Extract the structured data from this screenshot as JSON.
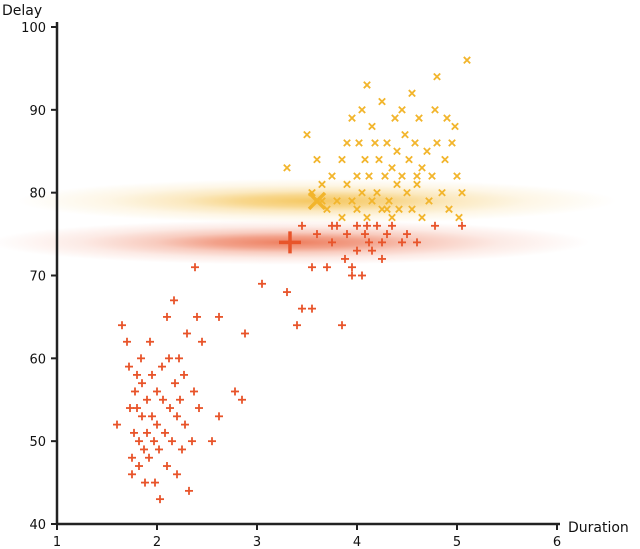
{
  "chart_data": {
    "type": "scatter",
    "xlabel": "Duration",
    "ylabel": "Delay",
    "xlim": [
      1,
      6
    ],
    "ylim": [
      40,
      100
    ],
    "xticks": [
      "1",
      "2",
      "3",
      "4",
      "5",
      "6"
    ],
    "yticks": [
      "40",
      "50",
      "60",
      "70",
      "80",
      "90",
      "100"
    ],
    "grid": false,
    "legend": "none",
    "colors": {
      "cluster_a": "#e8542a",
      "cluster_b": "#f2b52c"
    },
    "gaussians": [
      {
        "cluster": "a",
        "mean": [
          3.33,
          74
        ],
        "sd": [
          1.0,
          0.9
        ]
      },
      {
        "cluster": "b",
        "mean": [
          3.6,
          79
        ],
        "sd": [
          1.0,
          0.9
        ]
      }
    ],
    "series": [
      {
        "marker": "plus",
        "values": [
          [
            1.6,
            52
          ],
          [
            1.65,
            64
          ],
          [
            1.7,
            62
          ],
          [
            1.72,
            59
          ],
          [
            1.73,
            54
          ],
          [
            1.75,
            48
          ],
          [
            1.75,
            46
          ],
          [
            1.77,
            51
          ],
          [
            1.78,
            56
          ],
          [
            1.8,
            58
          ],
          [
            1.8,
            54
          ],
          [
            1.82,
            50
          ],
          [
            1.82,
            47
          ],
          [
            1.84,
            60
          ],
          [
            1.85,
            57
          ],
          [
            1.85,
            53
          ],
          [
            1.87,
            49
          ],
          [
            1.88,
            45
          ],
          [
            1.9,
            55
          ],
          [
            1.9,
            51
          ],
          [
            1.92,
            48
          ],
          [
            1.93,
            62
          ],
          [
            1.95,
            58
          ],
          [
            1.95,
            53
          ],
          [
            1.97,
            50
          ],
          [
            1.98,
            45
          ],
          [
            2.0,
            56
          ],
          [
            2.0,
            52
          ],
          [
            2.02,
            49
          ],
          [
            2.03,
            43
          ],
          [
            2.05,
            59
          ],
          [
            2.06,
            55
          ],
          [
            2.08,
            51
          ],
          [
            2.1,
            47
          ],
          [
            2.1,
            65
          ],
          [
            2.12,
            60
          ],
          [
            2.13,
            54
          ],
          [
            2.15,
            50
          ],
          [
            2.17,
            67
          ],
          [
            2.18,
            57
          ],
          [
            2.2,
            53
          ],
          [
            2.2,
            46
          ],
          [
            2.22,
            60
          ],
          [
            2.23,
            55
          ],
          [
            2.25,
            49
          ],
          [
            2.27,
            58
          ],
          [
            2.28,
            52
          ],
          [
            2.3,
            63
          ],
          [
            2.32,
            44
          ],
          [
            2.35,
            50
          ],
          [
            2.37,
            56
          ],
          [
            2.4,
            65
          ],
          [
            2.42,
            54
          ],
          [
            2.45,
            62
          ],
          [
            2.55,
            50
          ],
          [
            2.62,
            53
          ],
          [
            2.62,
            65
          ],
          [
            2.78,
            56
          ],
          [
            2.85,
            55
          ],
          [
            2.88,
            63
          ],
          [
            2.38,
            71
          ],
          [
            3.05,
            69
          ],
          [
            3.3,
            68
          ],
          [
            3.4,
            64
          ],
          [
            3.45,
            66
          ],
          [
            3.55,
            66
          ],
          [
            3.45,
            76
          ],
          [
            3.55,
            71
          ],
          [
            3.6,
            75
          ],
          [
            3.7,
            71
          ],
          [
            3.75,
            74
          ],
          [
            3.8,
            76
          ],
          [
            3.85,
            64
          ],
          [
            3.9,
            75
          ],
          [
            3.95,
            71
          ],
          [
            3.95,
            70
          ],
          [
            4.0,
            73
          ],
          [
            4.0,
            76
          ],
          [
            4.05,
            70
          ],
          [
            4.08,
            75
          ],
          [
            4.1,
            76
          ],
          [
            4.12,
            74
          ],
          [
            4.15,
            73
          ],
          [
            4.2,
            76
          ],
          [
            4.25,
            72
          ],
          [
            4.3,
            75
          ],
          [
            4.35,
            76
          ],
          [
            4.45,
            74
          ],
          [
            4.5,
            75
          ],
          [
            4.6,
            74
          ],
          [
            4.78,
            76
          ],
          [
            5.05,
            76
          ],
          [
            3.75,
            76
          ],
          [
            3.88,
            72
          ],
          [
            4.25,
            74
          ]
        ]
      },
      {
        "marker": "x",
        "values": [
          [
            3.3,
            83
          ],
          [
            3.5,
            87
          ],
          [
            3.55,
            80
          ],
          [
            3.6,
            84
          ],
          [
            3.65,
            81
          ],
          [
            3.65,
            79
          ],
          [
            3.7,
            78
          ],
          [
            3.75,
            82
          ],
          [
            3.8,
            79
          ],
          [
            3.85,
            77
          ],
          [
            3.85,
            84
          ],
          [
            3.9,
            81
          ],
          [
            3.95,
            79
          ],
          [
            3.95,
            89
          ],
          [
            4.0,
            82
          ],
          [
            4.0,
            78
          ],
          [
            4.02,
            86
          ],
          [
            4.05,
            80
          ],
          [
            4.08,
            84
          ],
          [
            4.1,
            77
          ],
          [
            4.1,
            93
          ],
          [
            4.12,
            82
          ],
          [
            4.15,
            79
          ],
          [
            4.15,
            88
          ],
          [
            4.18,
            86
          ],
          [
            4.2,
            80
          ],
          [
            4.22,
            84
          ],
          [
            4.25,
            78
          ],
          [
            4.25,
            91
          ],
          [
            4.28,
            82
          ],
          [
            4.3,
            86
          ],
          [
            4.32,
            79
          ],
          [
            4.35,
            83
          ],
          [
            4.35,
            77
          ],
          [
            4.38,
            89
          ],
          [
            4.4,
            81
          ],
          [
            4.4,
            85
          ],
          [
            4.42,
            78
          ],
          [
            4.45,
            82
          ],
          [
            4.45,
            90
          ],
          [
            4.48,
            87
          ],
          [
            4.5,
            80
          ],
          [
            4.52,
            84
          ],
          [
            4.55,
            78
          ],
          [
            4.55,
            92
          ],
          [
            4.58,
            86
          ],
          [
            4.6,
            81
          ],
          [
            4.62,
            89
          ],
          [
            4.65,
            83
          ],
          [
            4.65,
            77
          ],
          [
            4.7,
            85
          ],
          [
            4.72,
            79
          ],
          [
            4.75,
            82
          ],
          [
            4.78,
            90
          ],
          [
            4.8,
            86
          ],
          [
            4.8,
            94
          ],
          [
            4.85,
            80
          ],
          [
            4.88,
            84
          ],
          [
            4.9,
            89
          ],
          [
            4.92,
            78
          ],
          [
            4.95,
            86
          ],
          [
            4.98,
            88
          ],
          [
            5.0,
            82
          ],
          [
            5.02,
            77
          ],
          [
            5.05,
            80
          ],
          [
            5.1,
            96
          ],
          [
            3.9,
            86
          ],
          [
            4.05,
            90
          ],
          [
            4.3,
            78
          ],
          [
            4.6,
            82
          ]
        ]
      }
    ]
  }
}
